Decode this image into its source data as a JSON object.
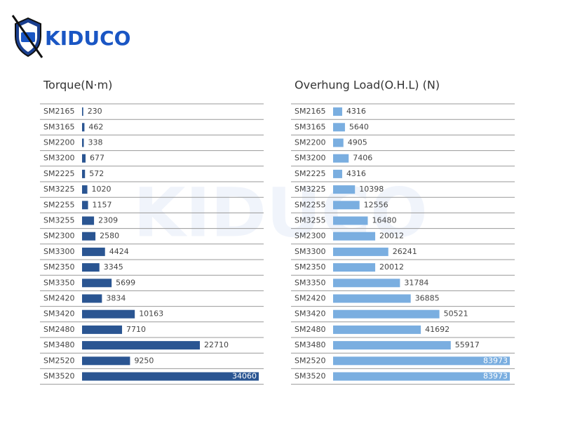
{
  "logo": "KIDUCO",
  "chart_data": [
    {
      "type": "bar",
      "orientation": "horizontal",
      "title": "Torque(N·m)",
      "categories": [
        "SM2165",
        "SM3165",
        "SM2200",
        "SM3200",
        "SM2225",
        "SM3225",
        "SM2255",
        "SM3255",
        "SM2300",
        "SM3300",
        "SM2350",
        "SM3350",
        "SM2420",
        "SM3420",
        "SM2480",
        "SM3480",
        "SM2520",
        "SM3520"
      ],
      "values": [
        230,
        462,
        338,
        677,
        572,
        1020,
        1157,
        2309,
        2580,
        4424,
        3345,
        5699,
        3834,
        10163,
        7710,
        22710,
        9250,
        34060
      ],
      "color": "#2a5592"
    },
    {
      "type": "bar",
      "orientation": "horizontal",
      "title": "Overhung Load(O.H.L) (N)",
      "categories": [
        "SM2165",
        "SM3165",
        "SM2200",
        "SM3200",
        "SM2225",
        "SM3225",
        "SM2255",
        "SM3255",
        "SM2300",
        "SM3300",
        "SM2350",
        "SM3350",
        "SM2420",
        "SM3420",
        "SM2480",
        "SM3480",
        "SM2520",
        "SM3520"
      ],
      "values": [
        4316,
        5640,
        4905,
        7406,
        4316,
        10398,
        12556,
        16480,
        20012,
        26241,
        20012,
        31784,
        36885,
        50521,
        41692,
        55917,
        83973,
        83973
      ],
      "color": "#7aaee0"
    }
  ]
}
